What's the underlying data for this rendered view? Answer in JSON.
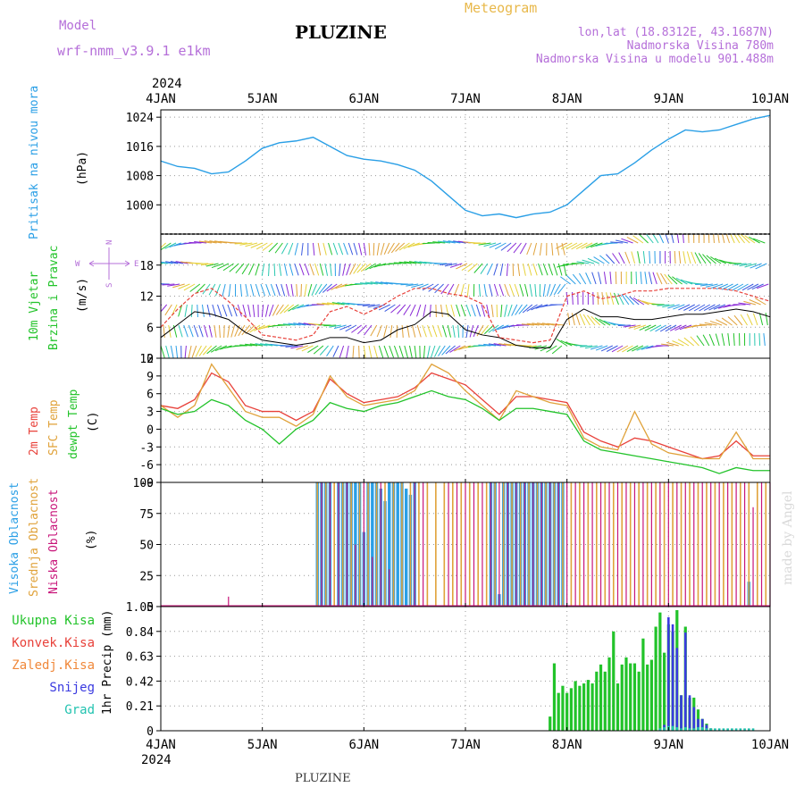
{
  "header": {
    "model_label": "Model",
    "model_name": "wrf-nmm_v3.9.1 e1km",
    "title": "PLUZINE",
    "meteogram": "Meteogram",
    "lonlat": "lon,lat (18.8312E, 43.1687N)",
    "altitude": "Nadmorska Visina 780m",
    "model_altitude": "Nadmorska Visina u modelu 901.488m",
    "footer": "PLUZINE",
    "watermark": "made by Angel"
  },
  "colors": {
    "pressure": "#2a9fe6",
    "temp2m": "#e8413a",
    "sfc": "#e0a23a",
    "dewpt": "#22c32a",
    "high_cloud": "#2a9fe6",
    "mid_cloud": "#e0a23a",
    "low_cloud": "#c8157a",
    "total_precip": "#22c32a",
    "conv_precip": "#e8413a",
    "snow": "#3a3ae0",
    "graupel": "#22c3b0",
    "header_purple": "#b56fd9"
  },
  "chart_data": [
    {
      "type": "line",
      "panel": "pressure",
      "ylabel": [
        "Pritisak na nivou mora",
        "(hPa)"
      ],
      "yticks": [
        1000,
        1008,
        1016,
        1024
      ],
      "ylim": [
        992,
        1026
      ],
      "x_hours": [
        0,
        4,
        8,
        12,
        16,
        20,
        24,
        28,
        32,
        36,
        40,
        44,
        48,
        52,
        56,
        60,
        64,
        68,
        72,
        76,
        80,
        84,
        88,
        92,
        96,
        100,
        104,
        108,
        112,
        116,
        120,
        124,
        128,
        132,
        136,
        140,
        144
      ],
      "series": [
        {
          "values": [
            1012,
            1010.5,
            1010,
            1008.5,
            1009,
            1012,
            1015.5,
            1017,
            1017.5,
            1018.5,
            1016,
            1013.5,
            1012.5,
            1012,
            1011,
            1009.5,
            1006.5,
            1002.5,
            998.5,
            997,
            997.5,
            996.5,
            997.5,
            998,
            1000,
            1004,
            1008,
            1008.5,
            1011.5,
            1015,
            1018,
            1020.5,
            1020,
            1020.5,
            1022,
            1023.5,
            1024.5
          ]
        }
      ]
    },
    {
      "type": "line",
      "panel": "wind",
      "ylabel": [
        "10m Vjetar",
        "Brzina i Pravac",
        "(m/s)"
      ],
      "compass": {
        "n": "N",
        "s": "S",
        "w": "W",
        "e": "E"
      },
      "yticks": [
        0,
        6,
        12,
        18
      ],
      "ylim": [
        0,
        24
      ],
      "x_hours": [
        0,
        4,
        8,
        12,
        16,
        20,
        24,
        28,
        32,
        36,
        40,
        44,
        48,
        52,
        56,
        60,
        64,
        68,
        72,
        76,
        80,
        84,
        88,
        92,
        96,
        100,
        104,
        108,
        112,
        116,
        120,
        124,
        128,
        132,
        136,
        140,
        144
      ],
      "series": [
        {
          "name": "speed",
          "values": [
            4,
            6.5,
            9,
            8.5,
            7.5,
            5,
            3.5,
            3,
            2.5,
            3,
            4,
            4,
            3,
            3.5,
            5.5,
            6.5,
            9,
            8.5,
            5.5,
            4.5,
            4,
            2.5,
            2,
            2,
            7.5,
            9.5,
            8,
            8,
            7.5,
            7.5,
            8,
            8.5,
            8.5,
            9,
            9.5,
            9,
            8
          ]
        },
        {
          "name": "gust",
          "values": [
            6,
            9.5,
            12.5,
            13.5,
            11,
            8,
            4.5,
            4,
            3.5,
            4.5,
            9,
            10,
            8.5,
            10,
            12,
            13.5,
            13.5,
            12.5,
            12,
            10.5,
            4,
            3.5,
            3,
            3.5,
            12,
            13,
            11.5,
            12,
            13,
            13,
            13.5,
            13.5,
            13.5,
            13.5,
            13,
            12,
            11
          ]
        }
      ]
    },
    {
      "type": "line",
      "panel": "temperature",
      "ylabel": [
        "2m Temp",
        "SFC Temp",
        "dewpt Temp",
        "(C)"
      ],
      "yticks": [
        -9,
        -6,
        -3,
        0,
        3,
        6,
        9,
        12
      ],
      "ylim": [
        -9,
        12
      ],
      "x_hours": [
        0,
        4,
        8,
        12,
        16,
        20,
        24,
        28,
        32,
        36,
        40,
        44,
        48,
        52,
        56,
        60,
        64,
        68,
        72,
        76,
        80,
        84,
        88,
        92,
        96,
        100,
        104,
        108,
        112,
        116,
        120,
        124,
        128,
        132,
        136,
        140,
        144
      ],
      "series": [
        {
          "name": "2m Temp",
          "values": [
            4,
            3.5,
            5,
            9.5,
            8,
            4,
            3,
            3,
            1.5,
            3,
            8.5,
            6,
            4.5,
            5,
            5.5,
            7,
            9.5,
            8.5,
            7.5,
            5,
            2.5,
            5.5,
            5.5,
            5,
            4.5,
            -0.5,
            -2,
            -3,
            -1.5,
            -2,
            -3,
            -4,
            -5,
            -4.5,
            -2,
            -4.5,
            -4.5
          ]
        },
        {
          "name": "SFC Temp",
          "values": [
            4,
            2,
            4,
            11,
            7,
            3,
            2,
            2,
            0.5,
            2.5,
            9,
            5.5,
            4,
            4.5,
            5,
            6.5,
            11,
            9.5,
            6.5,
            4,
            1.5,
            6.5,
            5.5,
            4.5,
            4,
            -1.5,
            -3,
            -3.5,
            3,
            -2.5,
            -4,
            -4.5,
            -5,
            -5,
            -0.5,
            -5,
            -5
          ]
        },
        {
          "name": "dewpt Temp",
          "values": [
            3.5,
            2.5,
            3,
            5,
            4,
            1.5,
            0,
            -2.5,
            0,
            1.5,
            4.5,
            3.5,
            3,
            4,
            4.5,
            5.5,
            6.5,
            5.5,
            5,
            3.5,
            1.5,
            3.5,
            3.5,
            3,
            2.5,
            -2,
            -3.5,
            -4,
            -4.5,
            -5,
            -5.5,
            -6,
            -6.5,
            -7.5,
            -6.5,
            -7,
            -7
          ]
        }
      ]
    },
    {
      "type": "bar",
      "panel": "cloud",
      "ylabel": [
        "Visoka Oblacnost",
        "Srednja Oblacnost",
        "Niska Oblacnost",
        "(%)"
      ],
      "yticks": [
        0,
        25,
        50,
        75,
        100
      ],
      "ylim": [
        0,
        100
      ],
      "series": [
        {
          "name": "Visoka Oblacnost",
          "x_hours": [
            37,
            38,
            39,
            40,
            42,
            43,
            44,
            45,
            46,
            47,
            48,
            49,
            50,
            51,
            52,
            53,
            54,
            55,
            56,
            57,
            58,
            59,
            60,
            78,
            79,
            80,
            81,
            82,
            83,
            84,
            85,
            86,
            87,
            88,
            89,
            90,
            91,
            92,
            93,
            94,
            95,
            139
          ],
          "values": [
            100,
            100,
            100,
            100,
            100,
            100,
            100,
            100,
            100,
            100,
            60,
            100,
            100,
            100,
            95,
            85,
            100,
            100,
            100,
            100,
            95,
            90,
            100,
            100,
            100,
            10,
            100,
            100,
            100,
            100,
            100,
            100,
            100,
            100,
            100,
            100,
            100,
            100,
            100,
            100,
            100,
            20
          ]
        },
        {
          "name": "Srednja Oblacnost",
          "x_hours": [
            37,
            39,
            41,
            43,
            45,
            47,
            49,
            51,
            53,
            55,
            57,
            59,
            61,
            63,
            65,
            67,
            69,
            71,
            73,
            75,
            77,
            79,
            81,
            83,
            85,
            87,
            89,
            91,
            93,
            95,
            97,
            99,
            101,
            103,
            105,
            107,
            109,
            111,
            113,
            115,
            117,
            119,
            121,
            123,
            125,
            127,
            129,
            131,
            133,
            135,
            137,
            139,
            141,
            143
          ],
          "values": [
            100,
            100,
            100,
            100,
            100,
            100,
            100,
            100,
            100,
            100,
            100,
            100,
            100,
            100,
            100,
            100,
            100,
            100,
            100,
            100,
            100,
            100,
            100,
            100,
            100,
            100,
            100,
            100,
            100,
            100,
            100,
            100,
            100,
            100,
            100,
            100,
            100,
            100,
            100,
            100,
            100,
            100,
            100,
            100,
            100,
            100,
            100,
            100,
            100,
            100,
            100,
            100,
            100,
            100
          ]
        },
        {
          "name": "Niska Oblacnost",
          "x_hours": [
            10,
            11,
            12,
            13,
            14,
            15,
            16,
            17,
            18,
            19,
            20,
            21,
            22,
            23,
            24,
            25,
            26,
            27,
            28,
            29,
            30,
            31,
            32,
            33,
            34,
            35,
            36,
            38,
            40,
            42,
            44,
            46,
            48,
            50,
            52,
            54,
            56,
            58,
            60,
            62,
            64,
            66,
            68,
            70,
            72,
            74,
            76,
            78,
            80,
            82,
            84,
            86,
            88,
            90,
            92,
            94,
            96,
            98,
            100,
            102,
            104,
            106,
            108,
            110,
            112,
            114,
            116,
            118,
            120,
            122,
            124,
            126,
            128,
            130,
            132,
            134,
            136,
            138,
            140,
            142,
            144
          ],
          "values": [
            1,
            1,
            1,
            1,
            1,
            1,
            8,
            1,
            1,
            1,
            1,
            1,
            1,
            1,
            1,
            1,
            1,
            1,
            1,
            1,
            1,
            1,
            1,
            1,
            1,
            1,
            1,
            100,
            100,
            100,
            100,
            50,
            100,
            40,
            100,
            30,
            1,
            1,
            100,
            100,
            1,
            1,
            100,
            100,
            100,
            100,
            100,
            100,
            100,
            100,
            100,
            100,
            100,
            100,
            100,
            100,
            100,
            100,
            100,
            100,
            100,
            100,
            100,
            100,
            100,
            100,
            100,
            100,
            100,
            100,
            100,
            100,
            100,
            100,
            100,
            100,
            100,
            100,
            80,
            100,
            100
          ]
        }
      ]
    },
    {
      "type": "bar",
      "panel": "precip",
      "ylabel": [
        "1hr Precip (mm)"
      ],
      "legend": [
        "Ukupna Kisa",
        "Konvek.Kisa",
        "Zaledj.Kisa",
        "Snijeg",
        "Grad"
      ],
      "yticks": [
        0,
        0.21,
        0.42,
        0.63,
        0.84,
        1.05
      ],
      "ylim": [
        0,
        1.05
      ],
      "series": [
        {
          "name": "Ukupna Kisa",
          "x_hours": [
            92,
            93,
            94,
            95,
            96,
            97,
            98,
            99,
            100,
            101,
            102,
            103,
            104,
            105,
            106,
            107,
            108,
            109,
            110,
            111,
            112,
            113,
            114,
            115,
            116,
            117,
            118,
            119,
            120,
            121,
            122,
            123,
            124,
            125,
            126,
            127,
            128,
            129,
            130
          ],
          "values": [
            0.12,
            0.57,
            0.32,
            0.38,
            0.32,
            0.36,
            0.42,
            0.38,
            0.4,
            0.43,
            0.4,
            0.5,
            0.56,
            0.5,
            0.62,
            0.84,
            0.4,
            0.56,
            0.62,
            0.57,
            0.57,
            0.5,
            0.78,
            0.56,
            0.6,
            0.88,
            1.0,
            0.66,
            0.9,
            0.84,
            1.02,
            0.3,
            0.88,
            0.28,
            0.28,
            0.18,
            0.1,
            0.06,
            0.02
          ]
        },
        {
          "name": "Snijeg",
          "x_hours": [
            119,
            120,
            121,
            122,
            123,
            124,
            125,
            126,
            127,
            128,
            129,
            130
          ],
          "values": [
            0.05,
            0.96,
            0.9,
            0.7,
            0.3,
            0.83,
            0.3,
            0.2,
            0.1,
            0.1,
            0.05,
            0.02
          ]
        },
        {
          "name": "Grad",
          "x_hours": [
            118,
            119,
            120,
            121,
            122,
            123,
            124,
            125,
            126,
            127,
            128,
            129,
            130,
            131,
            132,
            133,
            134,
            135,
            136,
            137,
            138,
            139,
            140
          ],
          "values": [
            0.02,
            0.03,
            0.04,
            0.04,
            0.03,
            0.02,
            0.03,
            0.02,
            0.02,
            0.03,
            0.03,
            0.02,
            0.02,
            0.02,
            0.02,
            0.02,
            0.02,
            0.02,
            0.02,
            0.02,
            0.02,
            0.02,
            0.02
          ]
        }
      ]
    }
  ],
  "x_axis": {
    "year": "2024",
    "labels": [
      "4JAN",
      "5JAN",
      "6JAN",
      "7JAN",
      "8JAN",
      "9JAN",
      "10JAN"
    ],
    "label_hours": [
      0,
      24,
      48,
      72,
      96,
      120,
      144
    ]
  }
}
